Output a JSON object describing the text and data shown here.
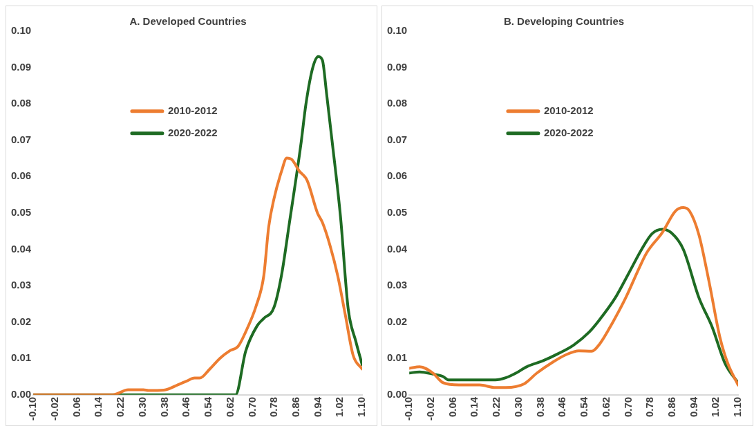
{
  "chart_data": [
    {
      "type": "line",
      "title": "A. Developed Countries",
      "xlim": [
        -0.1,
        1.1
      ],
      "xticks": [
        {
          "value": -0.1,
          "label": "-0.10"
        },
        {
          "value": -0.02,
          "label": "-0.02"
        },
        {
          "value": 0.06,
          "label": "0.06"
        },
        {
          "value": 0.14,
          "label": "0.14"
        },
        {
          "value": 0.22,
          "label": "0.22"
        },
        {
          "value": 0.3,
          "label": "0.30"
        },
        {
          "value": 0.38,
          "label": "0.38"
        },
        {
          "value": 0.46,
          "label": "0.46"
        },
        {
          "value": 0.54,
          "label": "0.54"
        },
        {
          "value": 0.62,
          "label": "0.62"
        },
        {
          "value": 0.7,
          "label": "0.70"
        },
        {
          "value": 0.78,
          "label": "0.78"
        },
        {
          "value": 0.86,
          "label": "0.86"
        },
        {
          "value": 0.94,
          "label": "0.94"
        },
        {
          "value": 1.02,
          "label": "1.02"
        },
        {
          "value": 1.1,
          "label": "1.10"
        }
      ],
      "ylim": [
        0,
        0.1
      ],
      "yticks": [
        {
          "value": 0,
          "label": "0.00"
        },
        {
          "value": 0.01,
          "label": "0.01"
        },
        {
          "value": 0.02,
          "label": "0.02"
        },
        {
          "value": 0.03,
          "label": "0.03"
        },
        {
          "value": 0.04,
          "label": "0.04"
        },
        {
          "value": 0.05,
          "label": "0.05"
        },
        {
          "value": 0.06,
          "label": "0.06"
        },
        {
          "value": 0.07,
          "label": "0.07"
        },
        {
          "value": 0.08,
          "label": "0.08"
        },
        {
          "value": 0.09,
          "label": "0.09"
        },
        {
          "value": 0.1,
          "label": "0.10"
        }
      ],
      "grid": false,
      "legend": "top",
      "marker": "none",
      "line_style": "solid",
      "series": [
        {
          "name": "2010-2012",
          "color": "#ed7d31",
          "x": [
            -0.1,
            0.19,
            0.246,
            0.302,
            0.32,
            0.376,
            0.432,
            0.46,
            0.488,
            0.507,
            0.544,
            0.582,
            0.619,
            0.647,
            0.675,
            0.713,
            0.741,
            0.759,
            0.778,
            0.806,
            0.825,
            0.843,
            0.871,
            0.899,
            0.937,
            0.955,
            0.983,
            1.011,
            1.039,
            1.067,
            1.1
          ],
          "values": [
            0,
            0,
            0.0014,
            0.0014,
            0.0012,
            0.0013,
            0.0029,
            0.0038,
            0.0046,
            0.0046,
            0.0071,
            0.0101,
            0.0122,
            0.0133,
            0.0173,
            0.0244,
            0.0327,
            0.0462,
            0.0538,
            0.0615,
            0.0651,
            0.0647,
            0.0615,
            0.059,
            0.05,
            0.0474,
            0.041,
            0.0327,
            0.0218,
            0.0109,
            0.0071
          ]
        },
        {
          "name": "2020-2022",
          "color": "#1e6b23",
          "x": [
            -0.1,
            0.638,
            0.675,
            0.717,
            0.741,
            0.778,
            0.806,
            0.834,
            0.876,
            0.895,
            0.92,
            0.94,
            0.955,
            0.97,
            0.99,
            1.021,
            1.049,
            1.077,
            1.1
          ],
          "values": [
            0,
            0,
            0.012,
            0.019,
            0.021,
            0.024,
            0.033,
            0.047,
            0.0686,
            0.08,
            0.09,
            0.093,
            0.092,
            0.083,
            0.07,
            0.049,
            0.0237,
            0.0147,
            0.0083
          ]
        }
      ]
    },
    {
      "type": "line",
      "title": "B. Developing Countries",
      "xlim": [
        -0.1,
        1.1
      ],
      "xticks": [
        {
          "value": -0.1,
          "label": "-0.10"
        },
        {
          "value": -0.02,
          "label": "-0.02"
        },
        {
          "value": 0.06,
          "label": "0.06"
        },
        {
          "value": 0.14,
          "label": "0.14"
        },
        {
          "value": 0.22,
          "label": "0.22"
        },
        {
          "value": 0.3,
          "label": "0.30"
        },
        {
          "value": 0.38,
          "label": "0.38"
        },
        {
          "value": 0.46,
          "label": "0.46"
        },
        {
          "value": 0.54,
          "label": "0.54"
        },
        {
          "value": 0.62,
          "label": "0.62"
        },
        {
          "value": 0.7,
          "label": "0.70"
        },
        {
          "value": 0.78,
          "label": "0.78"
        },
        {
          "value": 0.86,
          "label": "0.86"
        },
        {
          "value": 0.94,
          "label": "0.94"
        },
        {
          "value": 1.02,
          "label": "1.02"
        },
        {
          "value": 1.1,
          "label": "1.10"
        }
      ],
      "ylim": [
        0,
        0.1
      ],
      "yticks": [
        {
          "value": 0,
          "label": "0.00"
        },
        {
          "value": 0.01,
          "label": "0.01"
        },
        {
          "value": 0.02,
          "label": "0.02"
        },
        {
          "value": 0.03,
          "label": "0.03"
        },
        {
          "value": 0.04,
          "label": "0.04"
        },
        {
          "value": 0.05,
          "label": "0.05"
        },
        {
          "value": 0.06,
          "label": "0.06"
        },
        {
          "value": 0.07,
          "label": "0.07"
        },
        {
          "value": 0.08,
          "label": "0.08"
        },
        {
          "value": 0.09,
          "label": "0.09"
        },
        {
          "value": 0.1,
          "label": "0.10"
        }
      ],
      "grid": false,
      "legend": "top",
      "marker": "none",
      "line_style": "solid",
      "series": [
        {
          "name": "2010-2012",
          "color": "#ed7d31",
          "x": [
            -0.1,
            -0.062,
            -0.014,
            0.024,
            0.081,
            0.157,
            0.214,
            0.252,
            0.319,
            0.366,
            0.424,
            0.471,
            0.519,
            0.566,
            0.595,
            0.643,
            0.69,
            0.738,
            0.766,
            0.824,
            0.871,
            0.9,
            0.923,
            0.957,
            0.995,
            1.033,
            1.062,
            1.1
          ],
          "values": [
            0.0073,
            0.0077,
            0.006,
            0.0033,
            0.0027,
            0.0027,
            0.002,
            0.002,
            0.003,
            0.006,
            0.009,
            0.011,
            0.0121,
            0.012,
            0.014,
            0.02,
            0.0267,
            0.0347,
            0.039,
            0.0447,
            0.0505,
            0.0515,
            0.0505,
            0.044,
            0.0307,
            0.016,
            0.0087,
            0.0027
          ]
        },
        {
          "name": "2020-2022",
          "color": "#1e6b23",
          "x": [
            -0.1,
            -0.062,
            -0.014,
            0.024,
            0.043,
            0.214,
            0.252,
            0.29,
            0.328,
            0.386,
            0.443,
            0.5,
            0.557,
            0.595,
            0.652,
            0.7,
            0.748,
            0.786,
            0.824,
            0.857,
            0.9,
            0.957,
            1.005,
            1.052,
            1.1
          ],
          "values": [
            0.006,
            0.0063,
            0.0057,
            0.005,
            0.0041,
            0.0041,
            0.0047,
            0.006,
            0.0077,
            0.0093,
            0.0113,
            0.0137,
            0.0173,
            0.0207,
            0.0267,
            0.0333,
            0.04,
            0.0443,
            0.0455,
            0.0445,
            0.04,
            0.0267,
            0.0187,
            0.0087,
            0.0033
          ]
        }
      ]
    }
  ]
}
